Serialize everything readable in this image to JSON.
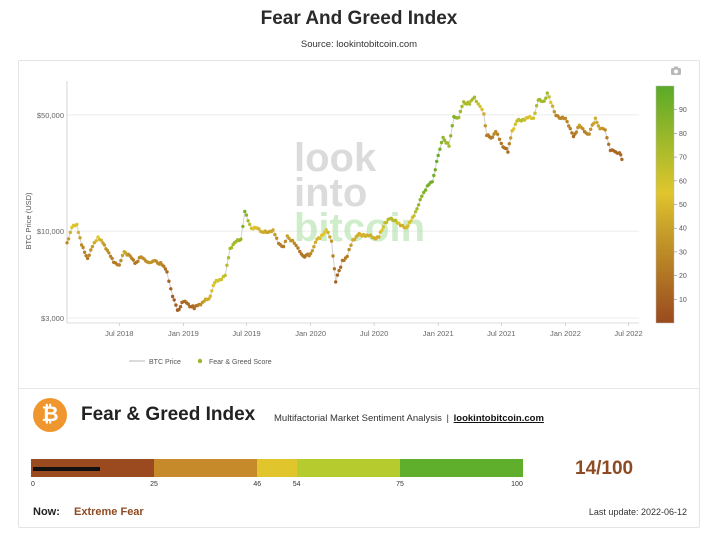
{
  "header": {
    "title": "Fear And Greed Index",
    "subtitle": "Source: lookintobitcoin.com"
  },
  "watermark": [
    "look",
    "into",
    "bitcoin"
  ],
  "chart_data": {
    "type": "scatter",
    "title": "Fear And Greed Index",
    "subtitle": "Source: lookintobitcoin.com",
    "ylabel": "BTC Price (USD)",
    "yscale": "log",
    "ylim": [
      2800,
      80000
    ],
    "ytick_labels": [
      "$3,000",
      "$10,000",
      "$50,000"
    ],
    "yticks": [
      3000,
      10000,
      50000
    ],
    "xlim": [
      "2018-02-01",
      "2022-07-31"
    ],
    "x_tick_labels": [
      "Jul 2018",
      "Jan 2019",
      "Jul 2019",
      "Jan 2020",
      "Jul 2020",
      "Jan 2021",
      "Jul 2021",
      "Jan 2022",
      "Jul 2022"
    ],
    "x_ticks": [
      "2018-07-01",
      "2019-01-01",
      "2019-07-01",
      "2020-01-01",
      "2020-07-01",
      "2021-01-01",
      "2021-07-01",
      "2022-01-01",
      "2022-07-01"
    ],
    "legend_position": "bottom-left",
    "legend": [
      "BTC Price",
      "Fear & Greed Score"
    ],
    "colorbar": {
      "min": 0,
      "max": 100,
      "ticks": [
        10,
        20,
        30,
        40,
        50,
        60,
        70,
        80,
        90
      ],
      "colors": [
        "#9a4a1e",
        "#c8a12a",
        "#e0c62c",
        "#5aaa28"
      ]
    },
    "series": [
      {
        "name": "BTC Price",
        "points": [
          [
            "2018-02-01",
            8500,
            30
          ],
          [
            "2018-02-15",
            10500,
            55
          ],
          [
            "2018-03-01",
            11000,
            58
          ],
          [
            "2018-03-15",
            8200,
            30
          ],
          [
            "2018-04-01",
            6900,
            22
          ],
          [
            "2018-04-15",
            8000,
            38
          ],
          [
            "2018-05-01",
            9300,
            55
          ],
          [
            "2018-05-15",
            8400,
            40
          ],
          [
            "2018-06-01",
            7500,
            30
          ],
          [
            "2018-06-15",
            6400,
            20
          ],
          [
            "2018-07-01",
            6350,
            25
          ],
          [
            "2018-07-15",
            7400,
            45
          ],
          [
            "2018-08-01",
            7200,
            30
          ],
          [
            "2018-08-15",
            6300,
            18
          ],
          [
            "2018-09-01",
            7100,
            32
          ],
          [
            "2018-09-15",
            6500,
            30
          ],
          [
            "2018-10-01",
            6600,
            35
          ],
          [
            "2018-10-15",
            6500,
            30
          ],
          [
            "2018-11-01",
            6350,
            28
          ],
          [
            "2018-11-15",
            5600,
            12
          ],
          [
            "2018-12-01",
            4100,
            10
          ],
          [
            "2018-12-15",
            3300,
            8
          ],
          [
            "2019-01-01",
            3800,
            15
          ],
          [
            "2019-01-15",
            3600,
            15
          ],
          [
            "2019-02-01",
            3450,
            14
          ],
          [
            "2019-02-15",
            3600,
            25
          ],
          [
            "2019-03-01",
            3800,
            40
          ],
          [
            "2019-03-15",
            3900,
            45
          ],
          [
            "2019-04-01",
            4900,
            60
          ],
          [
            "2019-04-15",
            5100,
            60
          ],
          [
            "2019-05-01",
            5400,
            65
          ],
          [
            "2019-05-15",
            7900,
            75
          ],
          [
            "2019-06-01",
            8600,
            75
          ],
          [
            "2019-06-15",
            9000,
            80
          ],
          [
            "2019-06-26",
            13000,
            90
          ],
          [
            "2019-07-15",
            10500,
            60
          ],
          [
            "2019-08-01",
            10300,
            50
          ],
          [
            "2019-08-15",
            10000,
            45
          ],
          [
            "2019-09-01",
            9700,
            40
          ],
          [
            "2019-09-15",
            10300,
            42
          ],
          [
            "2019-10-01",
            8300,
            25
          ],
          [
            "2019-10-15",
            8200,
            22
          ],
          [
            "2019-10-26",
            9200,
            40
          ],
          [
            "2019-11-15",
            8600,
            30
          ],
          [
            "2019-12-01",
            7400,
            20
          ],
          [
            "2019-12-15",
            7100,
            18
          ],
          [
            "2020-01-01",
            7200,
            30
          ],
          [
            "2020-01-15",
            8700,
            45
          ],
          [
            "2020-02-01",
            9300,
            55
          ],
          [
            "2020-02-15",
            10300,
            55
          ],
          [
            "2020-03-01",
            8600,
            35
          ],
          [
            "2020-03-13",
            5000,
            10
          ],
          [
            "2020-04-01",
            6600,
            20
          ],
          [
            "2020-04-15",
            7100,
            25
          ],
          [
            "2020-05-01",
            8800,
            45
          ],
          [
            "2020-05-15",
            9500,
            45
          ],
          [
            "2020-06-01",
            9500,
            48
          ],
          [
            "2020-06-15",
            9400,
            45
          ],
          [
            "2020-07-01",
            9100,
            45
          ],
          [
            "2020-07-15",
            9200,
            45
          ],
          [
            "2020-08-01",
            11300,
            65
          ],
          [
            "2020-08-15",
            11800,
            70
          ],
          [
            "2020-09-01",
            11700,
            70
          ],
          [
            "2020-09-15",
            10700,
            45
          ],
          [
            "2020-10-01",
            10600,
            48
          ],
          [
            "2020-10-15",
            11400,
            55
          ],
          [
            "2020-11-01",
            13800,
            75
          ],
          [
            "2020-11-15",
            16000,
            85
          ],
          [
            "2020-12-01",
            19000,
            90
          ],
          [
            "2020-12-15",
            19500,
            92
          ],
          [
            "2021-01-01",
            29000,
            95
          ],
          [
            "2021-01-15",
            36000,
            80
          ],
          [
            "2021-02-01",
            33000,
            75
          ],
          [
            "2021-02-15",
            48000,
            90
          ],
          [
            "2021-03-01",
            49000,
            75
          ],
          [
            "2021-03-15",
            59000,
            75
          ],
          [
            "2021-04-01",
            59000,
            70
          ],
          [
            "2021-04-15",
            63000,
            75
          ],
          [
            "2021-05-01",
            57000,
            60
          ],
          [
            "2021-05-12",
            50000,
            45
          ],
          [
            "2021-05-20",
            38000,
            25
          ],
          [
            "2021-06-01",
            36000,
            20
          ],
          [
            "2021-06-15",
            40000,
            30
          ],
          [
            "2021-07-01",
            33500,
            20
          ],
          [
            "2021-07-20",
            30000,
            15
          ],
          [
            "2021-08-01",
            40000,
            50
          ],
          [
            "2021-08-15",
            46000,
            65
          ],
          [
            "2021-09-01",
            47000,
            70
          ],
          [
            "2021-09-15",
            48000,
            50
          ],
          [
            "2021-10-01",
            48000,
            60
          ],
          [
            "2021-10-15",
            61000,
            75
          ],
          [
            "2021-11-01",
            61000,
            75
          ],
          [
            "2021-11-10",
            67000,
            75
          ],
          [
            "2021-11-25",
            57000,
            45
          ],
          [
            "2021-12-05",
            49000,
            25
          ],
          [
            "2021-12-15",
            48500,
            25
          ],
          [
            "2022-01-01",
            47000,
            30
          ],
          [
            "2022-01-15",
            42000,
            25
          ],
          [
            "2022-01-24",
            36500,
            15
          ],
          [
            "2022-02-10",
            44000,
            40
          ],
          [
            "2022-02-25",
            39000,
            25
          ],
          [
            "2022-03-10",
            39000,
            30
          ],
          [
            "2022-03-28",
            47000,
            45
          ],
          [
            "2022-04-10",
            42000,
            40
          ],
          [
            "2022-04-25",
            40000,
            30
          ],
          [
            "2022-05-10",
            31000,
            15
          ],
          [
            "2022-05-25",
            29500,
            12
          ],
          [
            "2022-06-05",
            30000,
            15
          ],
          [
            "2022-06-12",
            27000,
            14
          ]
        ]
      }
    ]
  },
  "fg": {
    "badge": "₿",
    "title": "Fear & Greed Index",
    "subtitle": "Multifactorial Market Sentiment Analysis",
    "separator": "|",
    "link": "lookintobitcoin.com",
    "gauge": [
      {
        "from": 0,
        "to": 25,
        "color": "#9a4a1e"
      },
      {
        "from": 25,
        "to": 46,
        "color": "#c68a2a"
      },
      {
        "from": 46,
        "to": 54,
        "color": "#e0c62c"
      },
      {
        "from": 54,
        "to": 75,
        "color": "#b6cc2e"
      },
      {
        "from": 75,
        "to": 100,
        "color": "#5fae2c"
      }
    ],
    "gauge_ticks": [
      "0",
      "25",
      "46",
      "54",
      "75",
      "100"
    ],
    "value": 14,
    "score_text": "14/100",
    "now_label": "Now:",
    "now_value": "Extreme Fear",
    "last_update": "Last update: 2022-06-12"
  }
}
